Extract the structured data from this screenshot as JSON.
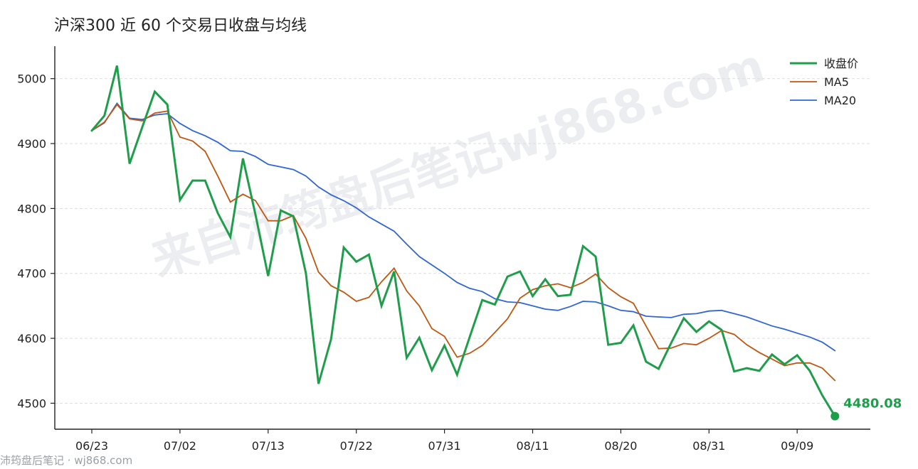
{
  "watermark": {
    "diagonal_text": "来自沛筠盘后笔记wj868.com",
    "footer_text": "沛筠盘后笔记 · wj868.com"
  },
  "colors": {
    "close": "#1e9e4a",
    "ma5": "#c0560f",
    "ma20": "#2f66d6",
    "grid": "#dddddd",
    "axis": "#222222"
  },
  "chart_data": {
    "type": "line",
    "title": "沪深300 近 60 个交易日收盘与均线",
    "xlabel": "",
    "ylabel": "",
    "ylim": [
      4460,
      5050
    ],
    "yticks": [
      4500,
      4600,
      4700,
      4800,
      4900,
      5000
    ],
    "grid": true,
    "legend_position": "top-right",
    "x_tick_labels": [
      "06/23",
      "07/02",
      "07/13",
      "07/22",
      "07/31",
      "08/11",
      "08/20",
      "08/31",
      "09/09"
    ],
    "x_tick_indices": [
      0,
      7,
      14,
      21,
      28,
      35,
      42,
      49,
      56
    ],
    "series": [
      {
        "name": "收盘价",
        "values": [
          4920,
          4943,
          5020,
          4869,
          4925,
          4980,
          4960,
          4813,
          4843,
          4843,
          4793,
          4756,
          4877,
          4790,
          4696,
          4797,
          4788,
          4700,
          4530,
          4599,
          4740,
          4718,
          4729,
          4650,
          4703,
          4570,
          4601,
          4551,
          4589,
          4544,
          4602,
          4659,
          4652,
          4695,
          4703,
          4665,
          4691,
          4665,
          4667,
          4742,
          4726,
          4590,
          4593,
          4620,
          4564,
          4553,
          4593,
          4631,
          4610,
          4626,
          4613,
          4549,
          4554,
          4550,
          4575,
          4560,
          4574,
          4550,
          4512,
          4480.08
        ]
      },
      {
        "name": "MA5",
        "values": [
          4920,
          4933,
          4960,
          4938,
          4935,
          4947,
          4950,
          4910,
          4904,
          4888,
          4850,
          4810,
          4822,
          4812,
          4781,
          4781,
          4789,
          4754,
          4702,
          4681,
          4671,
          4657,
          4663,
          4687,
          4708,
          4673,
          4650,
          4615,
          4603,
          4571,
          4577,
          4589,
          4609,
          4630,
          4662,
          4675,
          4681,
          4684,
          4678,
          4686,
          4699,
          4678,
          4664,
          4654,
          4619,
          4584,
          4585,
          4592,
          4590,
          4600,
          4612,
          4606,
          4590,
          4578,
          4568,
          4558,
          4562,
          4562,
          4554,
          4535
        ]
      },
      {
        "name": "MA20",
        "values": [
          4920,
          4932,
          4962,
          4939,
          4937,
          4944,
          4946,
          4931,
          4920,
          4912,
          4902,
          4889,
          4888,
          4880,
          4868,
          4864,
          4860,
          4850,
          4833,
          4821,
          4812,
          4801,
          4787,
          4776,
          4765,
          4745,
          4726,
          4713,
          4700,
          4686,
          4677,
          4672,
          4661,
          4656,
          4655,
          4650,
          4645,
          4643,
          4649,
          4657,
          4656,
          4650,
          4643,
          4641,
          4634,
          4633,
          4632,
          4637,
          4638,
          4642,
          4643,
          4638,
          4633,
          4626,
          4619,
          4614,
          4608,
          4602,
          4594,
          4581
        ]
      }
    ],
    "end_label": "4480.08"
  }
}
